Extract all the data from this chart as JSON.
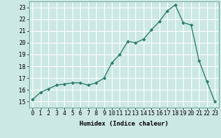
{
  "x": [
    0,
    1,
    2,
    3,
    4,
    5,
    6,
    7,
    8,
    9,
    10,
    11,
    12,
    13,
    14,
    15,
    16,
    17,
    18,
    19,
    20,
    21,
    22,
    23
  ],
  "y": [
    15.2,
    15.8,
    16.1,
    16.4,
    16.5,
    16.6,
    16.6,
    16.4,
    16.6,
    17.0,
    18.3,
    19.0,
    20.1,
    20.0,
    20.3,
    21.1,
    21.8,
    22.7,
    23.2,
    21.7,
    21.5,
    18.5,
    16.7,
    15.0
  ],
  "line_color": "#2e7d6e",
  "marker": "D",
  "marker_size": 2.2,
  "bg_color": "#cce8e4",
  "grid_color": "#ffffff",
  "xlabel": "Humidex (Indice chaleur)",
  "xlim": [
    -0.5,
    23.5
  ],
  "ylim": [
    14.5,
    23.5
  ],
  "yticks": [
    15,
    16,
    17,
    18,
    19,
    20,
    21,
    22,
    23
  ],
  "xticks": [
    0,
    1,
    2,
    3,
    4,
    5,
    6,
    7,
    8,
    9,
    10,
    11,
    12,
    13,
    14,
    15,
    16,
    17,
    18,
    19,
    20,
    21,
    22,
    23
  ],
  "xlabel_fontsize": 6.5,
  "tick_fontsize": 6.0,
  "line_width": 1.0
}
